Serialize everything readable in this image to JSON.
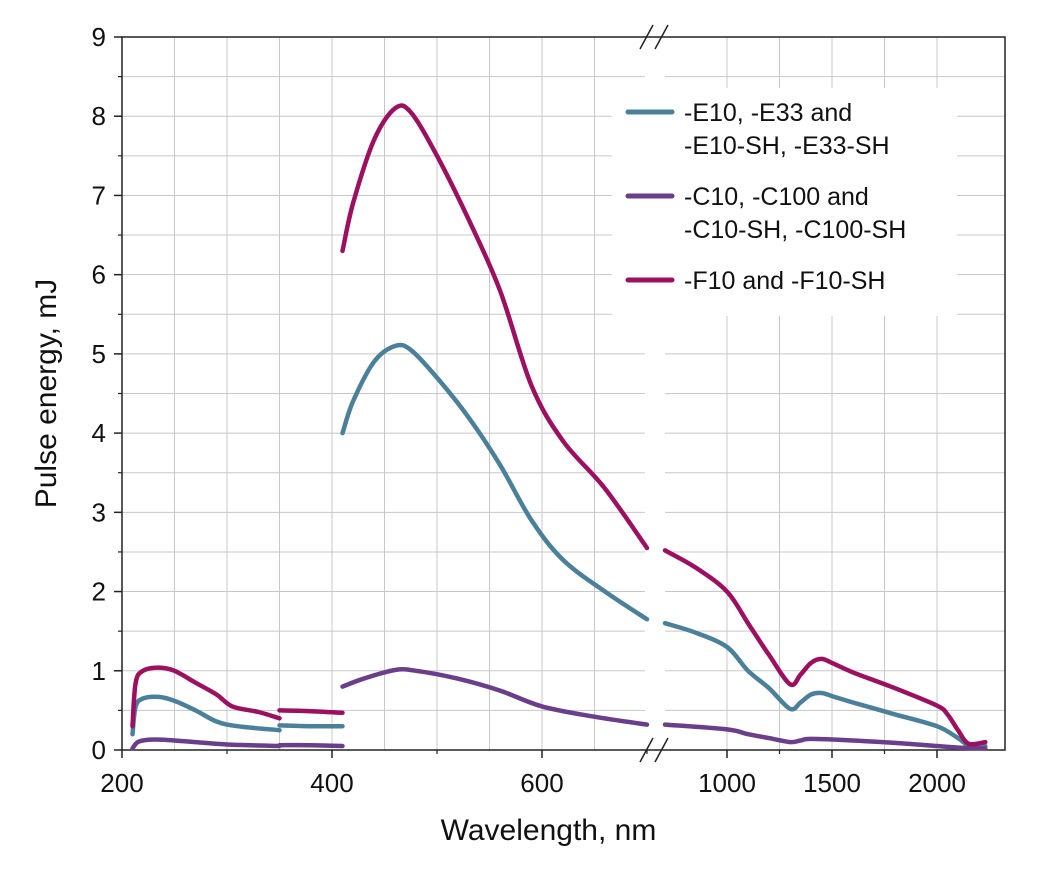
{
  "chart_data": {
    "type": "line",
    "xlabel": "Wavelength, nm",
    "ylabel": "Pulse energy, mJ",
    "ylim": [
      0,
      9
    ],
    "x_axis": "segmented with axis break between 800 and 900 nm; linear 200-800, then scaled segment 800-2300",
    "grid": true,
    "y_ticks": [
      "0",
      "1",
      "2",
      "3",
      "4",
      "5",
      "6",
      "7",
      "8",
      "9"
    ],
    "x_ticks": [
      "200",
      "400",
      "600",
      "1000",
      "1500",
      "2000"
    ],
    "legend": {
      "position": "top-right",
      "entries": [
        {
          "lines": [
            "-E10, -E33 and",
            "-E10-SH, -E33-SH"
          ],
          "color": "#4a8099"
        },
        {
          "lines": [
            "-C10, -C100 and",
            "-C10-SH, -C100-SH"
          ],
          "color": "#6b3e8c"
        },
        {
          "lines": [
            "-F10 and -F10-SH"
          ],
          "color": "#9c1060"
        }
      ]
    },
    "series": [
      {
        "name": "-E10, -E33 and -E10-SH, -E33-SH",
        "color": "#4a8099",
        "segments": [
          [
            [
              210,
              0.2
            ],
            [
              213,
              0.55
            ],
            [
              220,
              0.65
            ],
            [
              235,
              0.67
            ],
            [
              250,
              0.62
            ],
            [
              270,
              0.5
            ],
            [
              290,
              0.36
            ],
            [
              310,
              0.3
            ],
            [
              350,
              0.25
            ]
          ],
          [
            [
              350,
              0.31
            ],
            [
              380,
              0.3
            ],
            [
              410,
              0.3
            ]
          ],
          [
            [
              410,
              4.0
            ],
            [
              420,
              4.4
            ],
            [
              440,
              4.9
            ],
            [
              460,
              5.1
            ],
            [
              475,
              5.05
            ],
            [
              500,
              4.7
            ],
            [
              530,
              4.2
            ],
            [
              560,
              3.6
            ],
            [
              590,
              2.9
            ],
            [
              620,
              2.4
            ],
            [
              660,
              2.0
            ],
            [
              700,
              1.65
            ]
          ],
          [
            [
              900,
              1.6
            ],
            [
              950,
              1.48
            ],
            [
              1000,
              1.3
            ],
            [
              1100,
              1.0
            ],
            [
              1200,
              0.78
            ],
            [
              1300,
              0.52
            ],
            [
              1350,
              0.6
            ],
            [
              1400,
              0.7
            ],
            [
              1450,
              0.72
            ],
            [
              1500,
              0.68
            ],
            [
              1600,
              0.6
            ],
            [
              1800,
              0.45
            ],
            [
              2000,
              0.3
            ],
            [
              2100,
              0.15
            ],
            [
              2150,
              0.06
            ],
            [
              2230,
              0.05
            ]
          ]
        ]
      },
      {
        "name": "-C10, -C100 and -C10-SH, -C100-SH",
        "color": "#6b3e8c",
        "segments": [
          [
            [
              210,
              0.02
            ],
            [
              215,
              0.1
            ],
            [
              225,
              0.13
            ],
            [
              240,
              0.13
            ],
            [
              270,
              0.1
            ],
            [
              300,
              0.07
            ],
            [
              350,
              0.05
            ]
          ],
          [
            [
              350,
              0.06
            ],
            [
              380,
              0.06
            ],
            [
              410,
              0.05
            ]
          ],
          [
            [
              410,
              0.8
            ],
            [
              430,
              0.9
            ],
            [
              460,
              1.01
            ],
            [
              480,
              1.0
            ],
            [
              520,
              0.9
            ],
            [
              560,
              0.75
            ],
            [
              600,
              0.55
            ],
            [
              650,
              0.42
            ],
            [
              700,
              0.32
            ]
          ],
          [
            [
              900,
              0.32
            ],
            [
              1000,
              0.26
            ],
            [
              1100,
              0.2
            ],
            [
              1200,
              0.15
            ],
            [
              1300,
              0.1
            ],
            [
              1350,
              0.12
            ],
            [
              1400,
              0.14
            ],
            [
              1600,
              0.12
            ],
            [
              1800,
              0.09
            ],
            [
              2000,
              0.05
            ],
            [
              2100,
              0.03
            ],
            [
              2230,
              0.02
            ]
          ]
        ]
      },
      {
        "name": "-F10 and -F10-SH",
        "color": "#9c1060",
        "segments": [
          [
            [
              210,
              0.3
            ],
            [
              213,
              0.85
            ],
            [
              220,
              1.0
            ],
            [
              235,
              1.04
            ],
            [
              250,
              1.0
            ],
            [
              270,
              0.85
            ],
            [
              290,
              0.7
            ],
            [
              305,
              0.55
            ],
            [
              330,
              0.48
            ],
            [
              350,
              0.4
            ]
          ],
          [
            [
              350,
              0.5
            ],
            [
              380,
              0.49
            ],
            [
              410,
              0.47
            ]
          ],
          [
            [
              410,
              6.3
            ],
            [
              420,
              6.9
            ],
            [
              440,
              7.7
            ],
            [
              460,
              8.1
            ],
            [
              475,
              8.05
            ],
            [
              500,
              7.5
            ],
            [
              530,
              6.7
            ],
            [
              560,
              5.8
            ],
            [
              590,
              4.6
            ],
            [
              620,
              3.9
            ],
            [
              660,
              3.3
            ],
            [
              700,
              2.55
            ]
          ],
          [
            [
              900,
              2.52
            ],
            [
              950,
              2.3
            ],
            [
              1000,
              2.0
            ],
            [
              1100,
              1.6
            ],
            [
              1200,
              1.2
            ],
            [
              1300,
              0.83
            ],
            [
              1350,
              0.95
            ],
            [
              1400,
              1.1
            ],
            [
              1450,
              1.15
            ],
            [
              1500,
              1.1
            ],
            [
              1600,
              0.98
            ],
            [
              1800,
              0.78
            ],
            [
              2000,
              0.56
            ],
            [
              2050,
              0.45
            ],
            [
              2100,
              0.25
            ],
            [
              2150,
              0.08
            ],
            [
              2230,
              0.1
            ]
          ]
        ]
      }
    ]
  }
}
